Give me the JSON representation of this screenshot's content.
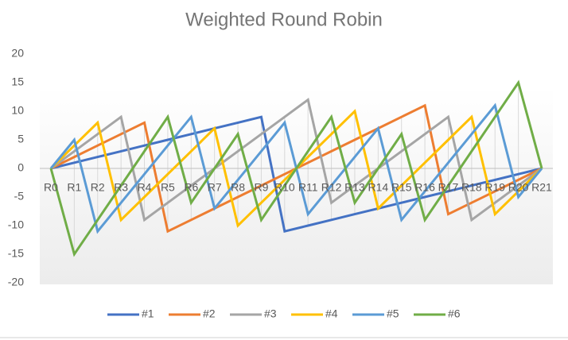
{
  "chart_data": {
    "type": "line",
    "title": "Weighted Round Robin",
    "categories": [
      "R0",
      "R1",
      "R2",
      "R3",
      "R4",
      "R5",
      "R6",
      "R7",
      "R8",
      "R9",
      "R10",
      "R11",
      "R12",
      "R13",
      "R14",
      "R15",
      "R16",
      "R17",
      "R18",
      "R19",
      "R20",
      "R21"
    ],
    "series": [
      {
        "name": "#1",
        "color": "#4472c4",
        "values": [
          0,
          1,
          2,
          3,
          4,
          5,
          6,
          7,
          8,
          9,
          -11,
          -10,
          -9,
          -8,
          -7,
          -6,
          -5,
          -4,
          -3,
          -2,
          -1,
          0
        ]
      },
      {
        "name": "#2",
        "color": "#ed7d31",
        "values": [
          0,
          2,
          4,
          6,
          8,
          -11,
          -9,
          -7,
          -5,
          -3,
          -1,
          1,
          3,
          5,
          7,
          9,
          11,
          -8,
          -6,
          -4,
          -2,
          0
        ]
      },
      {
        "name": "#3",
        "color": "#a5a5a5",
        "values": [
          0,
          3,
          6,
          9,
          -9,
          -6,
          -3,
          0,
          3,
          6,
          9,
          12,
          -6,
          -3,
          0,
          3,
          6,
          9,
          -9,
          -6,
          -3,
          0
        ]
      },
      {
        "name": "#4",
        "color": "#ffc000",
        "values": [
          0,
          4,
          8,
          -9,
          -5,
          -1,
          3,
          7,
          -10,
          -6,
          -2,
          2,
          6,
          10,
          -7,
          -3,
          1,
          5,
          9,
          -8,
          -4,
          0
        ]
      },
      {
        "name": "#5",
        "color": "#5b9bd5",
        "values": [
          0,
          5,
          -11,
          -6,
          -1,
          4,
          9,
          -7,
          -2,
          3,
          8,
          -8,
          -3,
          2,
          7,
          -9,
          -4,
          1,
          6,
          11,
          -5,
          0
        ]
      },
      {
        "name": "#6",
        "color": "#70ad47",
        "values": [
          0,
          -15,
          -9,
          -3,
          3,
          9,
          -6,
          0,
          6,
          -9,
          -3,
          3,
          9,
          -6,
          0,
          6,
          -9,
          -3,
          3,
          9,
          15,
          0
        ]
      }
    ],
    "ylim": [
      -20,
      20
    ],
    "yticks": [
      -20,
      -15,
      -10,
      -5,
      0,
      5,
      10,
      15,
      20
    ],
    "grid": false,
    "legend": "bottom"
  }
}
